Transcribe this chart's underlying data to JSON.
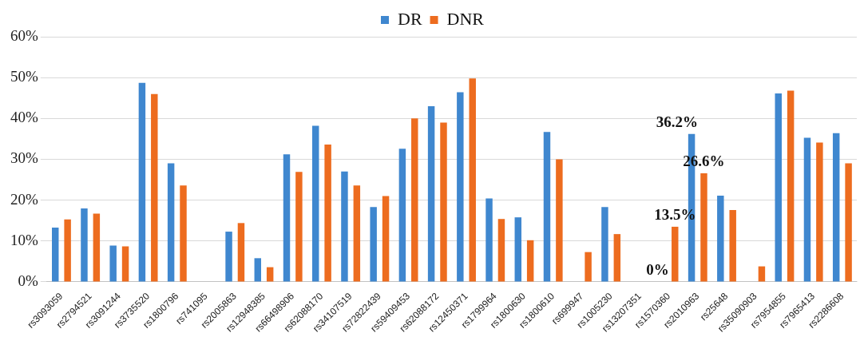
{
  "chart_data": {
    "type": "bar",
    "categories": [
      "rs3093059",
      "rs2794521",
      "rs3091244",
      "rs3735520",
      "rs1800796",
      "rs741095",
      "rs2005863",
      "rs12948385",
      "rs66498906",
      "rs62088170",
      "rs34107519",
      "rs72822439",
      "rs59409453",
      "rs62088172",
      "rs12450371",
      "rs1799964",
      "rs1800630",
      "rs1800610",
      "rs699947",
      "rs1005230",
      "rs13207351",
      "rs1570360",
      "rs2010963",
      "rs25648",
      "rs35090903",
      "rs7954855",
      "rs7965413",
      "rs2286608"
    ],
    "series": [
      {
        "name": "DR",
        "color": "#3f87cf",
        "values": [
          13.3,
          18,
          8.9,
          48.7,
          29,
          0,
          12.3,
          5.8,
          31.2,
          38.2,
          27,
          18.3,
          32.6,
          43,
          46.4,
          20.4,
          15.8,
          36.7,
          0,
          18.3,
          0,
          0,
          36.2,
          21.1,
          0,
          46.1,
          35.3,
          36.4
        ],
        "value_labels": [
          null,
          null,
          null,
          null,
          null,
          null,
          null,
          null,
          null,
          null,
          null,
          null,
          null,
          null,
          null,
          null,
          null,
          null,
          null,
          null,
          null,
          "0%",
          "36.2%",
          null,
          null,
          null,
          null,
          null
        ]
      },
      {
        "name": "DNR",
        "color": "#ed6c1f",
        "values": [
          15.3,
          16.7,
          8.7,
          46,
          23.6,
          0,
          14.4,
          3.6,
          26.9,
          33.6,
          23.6,
          21,
          40,
          39,
          49.8,
          15.4,
          10.2,
          30,
          7.3,
          11.7,
          0,
          13.5,
          26.6,
          17.6,
          3.8,
          46.8,
          34.1,
          29
        ],
        "value_labels": [
          null,
          null,
          null,
          null,
          null,
          null,
          null,
          null,
          null,
          null,
          null,
          null,
          null,
          null,
          null,
          null,
          null,
          null,
          null,
          null,
          null,
          "13.5%",
          "26.6%",
          null,
          null,
          null,
          null,
          null
        ]
      }
    ],
    "ylim": [
      0,
      60
    ],
    "yticks": [
      {
        "value": 0,
        "label": "0%"
      },
      {
        "value": 10,
        "label": "10%"
      },
      {
        "value": 20,
        "label": "20%"
      },
      {
        "value": 30,
        "label": "30%"
      },
      {
        "value": 40,
        "label": "40%"
      },
      {
        "value": 50,
        "label": "50%"
      },
      {
        "value": 60,
        "label": "60%"
      }
    ],
    "grid": "y",
    "legend": "top"
  }
}
